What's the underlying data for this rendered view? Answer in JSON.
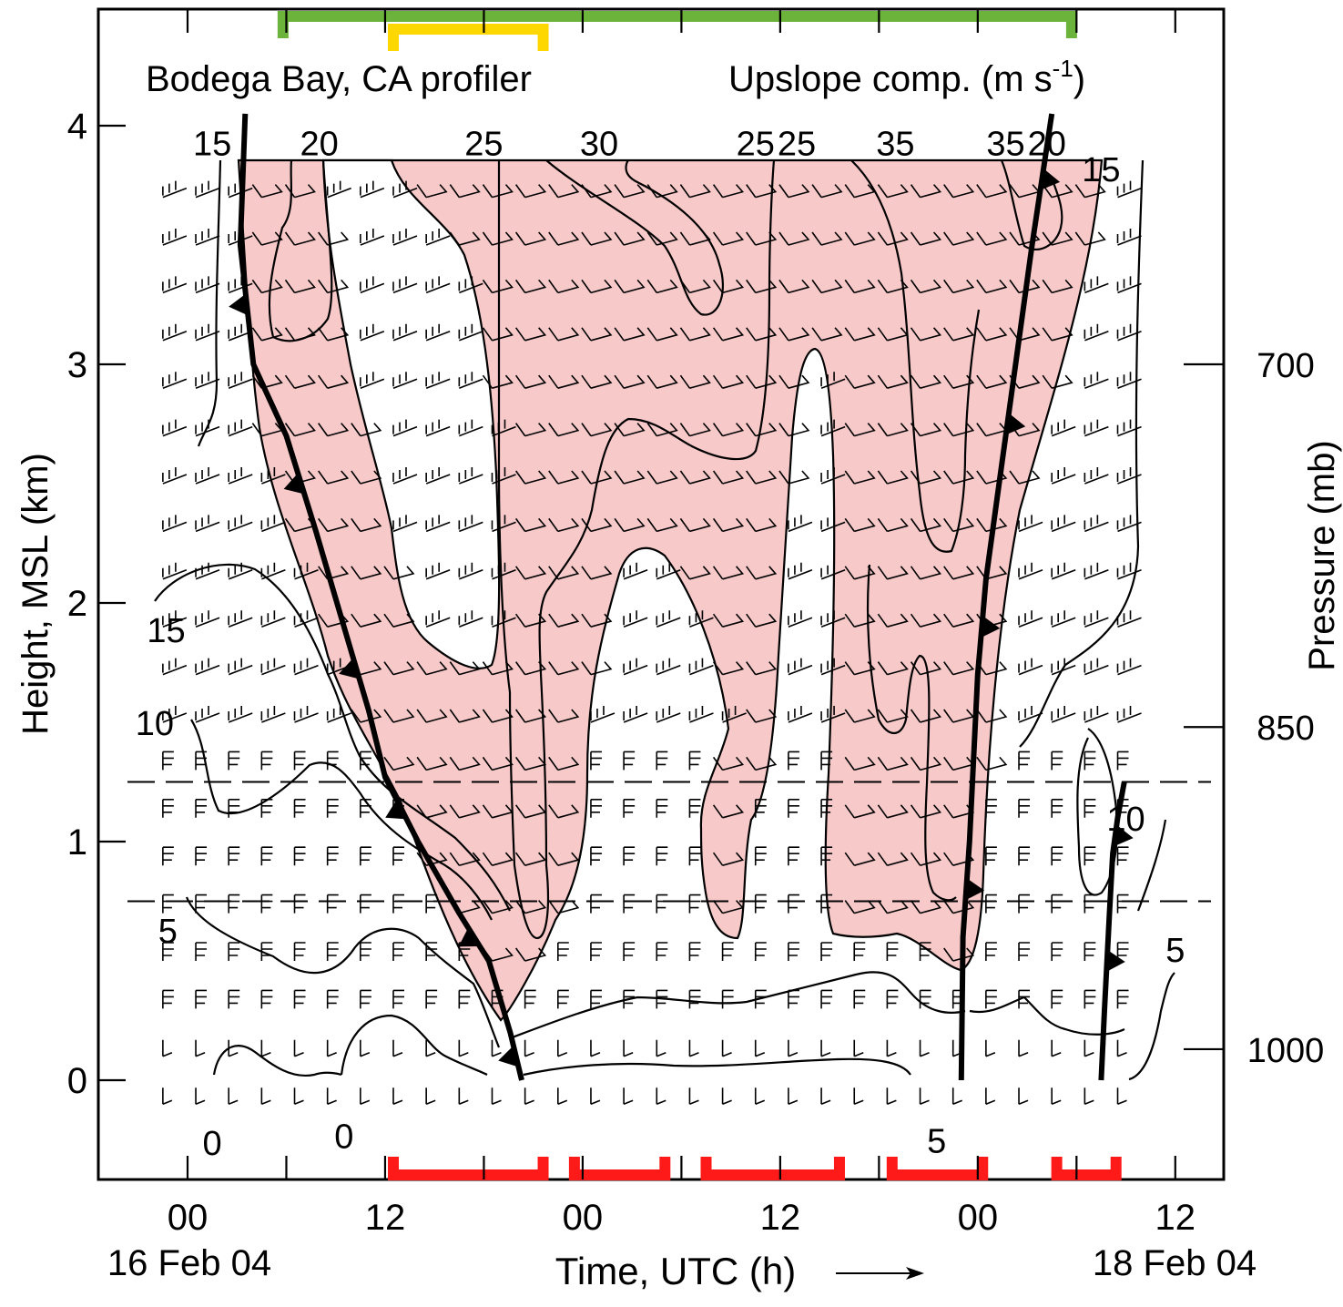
{
  "chart_data": {
    "type": "time-height wind profile (contoured)",
    "header_left": "Bodega Bay, CA profiler",
    "header_right_main": "Upslope comp. (m s",
    "header_right_sup": "-1",
    "header_right_close": ")",
    "xlabel": "Time, UTC (h)",
    "ylabel": "Height, MSL (km)",
    "y2label": "Pressure (mb)",
    "date_left": "16 Feb 04",
    "date_right": "18 Feb 04",
    "x_tick_hours": [
      0,
      6,
      12,
      18,
      24,
      30,
      36,
      42,
      48,
      54,
      60
    ],
    "x_tick_labels": [
      "00",
      "12",
      "00",
      "12",
      "00",
      "12"
    ],
    "x_tick_label_hours": [
      0,
      12,
      24,
      36,
      48,
      60
    ],
    "xlim_hours": [
      -5,
      62
    ],
    "y_ticks_km": [
      0,
      1,
      2,
      3,
      4
    ],
    "y_tick_labels": [
      "0",
      "1",
      "2",
      "3",
      "4"
    ],
    "ylim_km": [
      -0.4,
      4.5
    ],
    "pressure_levels": [
      {
        "label": "700",
        "km": 3.0
      },
      {
        "label": "850",
        "km": 1.48
      },
      {
        "label": "1000",
        "km": 0.13
      }
    ],
    "dashed_layer_km": [
      0.75,
      1.25
    ],
    "contour_labels": [
      {
        "text": "15",
        "hour": 1.5,
        "km": 3.93
      },
      {
        "text": "20",
        "hour": 8.0,
        "km": 3.93
      },
      {
        "text": "25",
        "hour": 18.0,
        "km": 3.93
      },
      {
        "text": "30",
        "hour": 25.0,
        "km": 3.93
      },
      {
        "text": "25",
        "hour": 34.5,
        "km": 3.93
      },
      {
        "text": "25",
        "hour": 37.0,
        "km": 3.93
      },
      {
        "text": "35",
        "hour": 43.0,
        "km": 3.93
      },
      {
        "text": "35",
        "hour": 49.7,
        "km": 3.93
      },
      {
        "text": "20",
        "hour": 52.2,
        "km": 3.93
      },
      {
        "text": "15",
        "hour": 55.5,
        "km": 3.82
      },
      {
        "text": "15",
        "hour": -1.3,
        "km": 1.89
      },
      {
        "text": "10",
        "hour": -2.0,
        "km": 1.5
      },
      {
        "text": "5",
        "hour": -1.2,
        "km": 0.63
      },
      {
        "text": "0",
        "hour": 1.5,
        "km": -0.26
      },
      {
        "text": "0",
        "hour": 9.5,
        "km": -0.23
      },
      {
        "text": "5",
        "hour": 45.5,
        "km": -0.25
      },
      {
        "text": "10",
        "hour": 57.0,
        "km": 1.1
      },
      {
        "text": "5",
        "hour": 60.0,
        "km": 0.55
      }
    ],
    "shaded_region": "upslope component >= 20 m s-1",
    "shade_color": "#f7c9c8",
    "top_bars": [
      {
        "color": "#6bb33a",
        "start_hour": 5.8,
        "end_hour": 53.7
      },
      {
        "color": "#ffd700",
        "start_hour": 12.5,
        "end_hour": 21.6
      }
    ],
    "bottom_bars_color": "#ff1a1a",
    "bottom_bars": [
      {
        "start_hour": 12.5,
        "end_hour": 21.6
      },
      {
        "start_hour": 23.5,
        "end_hour": 29.0
      },
      {
        "start_hour": 31.5,
        "end_hour": 39.6
      },
      {
        "start_hour": 42.8,
        "end_hour": 48.3
      },
      {
        "start_hour": 52.8,
        "end_hour": 56.4
      }
    ],
    "front_color": "#000000",
    "fronts": [
      {
        "name": "front-1",
        "points": [
          [
            3.5,
            4.05
          ],
          [
            3.2,
            3.5
          ],
          [
            4.0,
            3.0
          ],
          [
            6.0,
            2.7
          ],
          [
            7.8,
            2.3
          ],
          [
            9.5,
            1.9
          ],
          [
            11.0,
            1.55
          ],
          [
            12.0,
            1.27
          ],
          [
            14.0,
            1.0
          ],
          [
            16.5,
            0.7
          ],
          [
            18.3,
            0.5
          ],
          [
            19.6,
            0.2
          ],
          [
            20.3,
            0.0
          ]
        ]
      },
      {
        "name": "front-2",
        "points": [
          [
            47.0,
            0.0
          ],
          [
            47.1,
            0.6
          ],
          [
            47.5,
            1.0
          ],
          [
            48.0,
            1.7
          ],
          [
            48.5,
            2.1
          ],
          [
            49.3,
            2.5
          ],
          [
            50.3,
            3.0
          ],
          [
            51.3,
            3.5
          ],
          [
            52.5,
            4.05
          ]
        ]
      },
      {
        "name": "front-3",
        "points": [
          [
            55.5,
            0.0
          ],
          [
            55.7,
            0.3
          ],
          [
            56.0,
            0.7
          ],
          [
            56.2,
            0.95
          ],
          [
            56.5,
            1.1
          ],
          [
            56.9,
            1.25
          ]
        ]
      }
    ]
  }
}
